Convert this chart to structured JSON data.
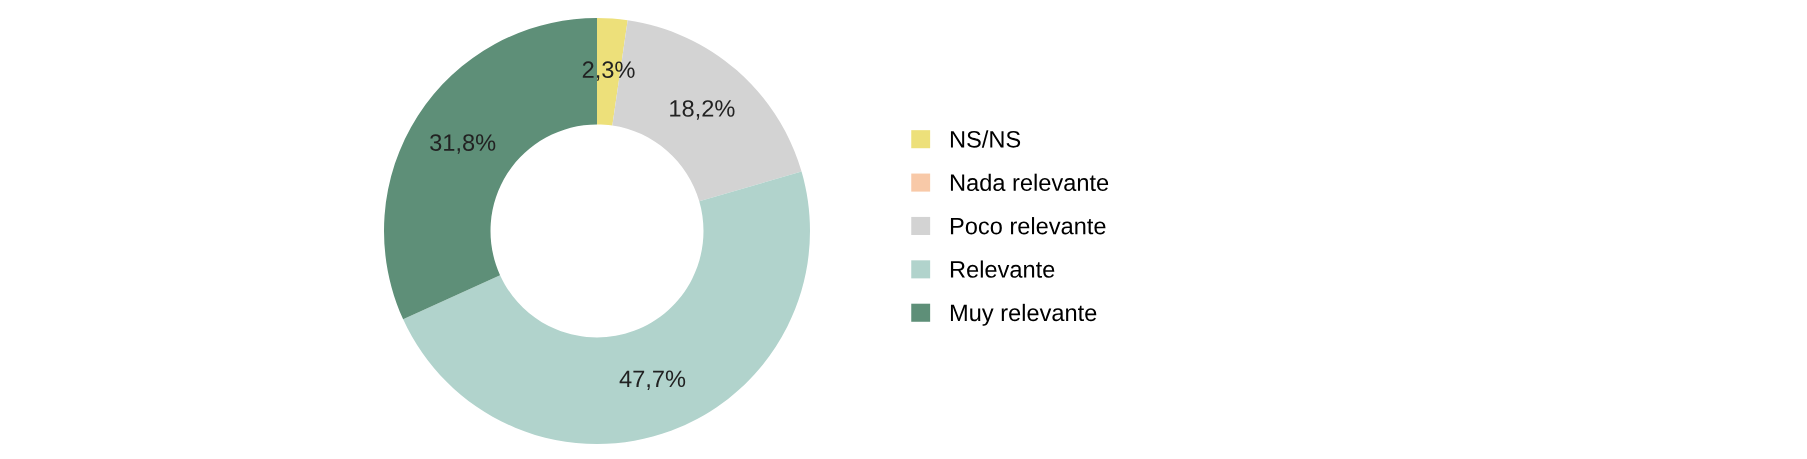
{
  "chart_data": {
    "type": "donut",
    "categories": [
      "NS/NS",
      "Nada relevante",
      "Poco relevante",
      "Relevante",
      "Muy relevante"
    ],
    "values": [
      2.3,
      0,
      18.2,
      47.7,
      31.8
    ],
    "value_labels": [
      "2,3%",
      null,
      "18,2%",
      "47,7%",
      "31,8%"
    ],
    "colors": [
      "#ede07a",
      "#f8c9a8",
      "#d3d3d3",
      "#b1d3cc",
      "#5e8f78"
    ],
    "legend": "right"
  }
}
